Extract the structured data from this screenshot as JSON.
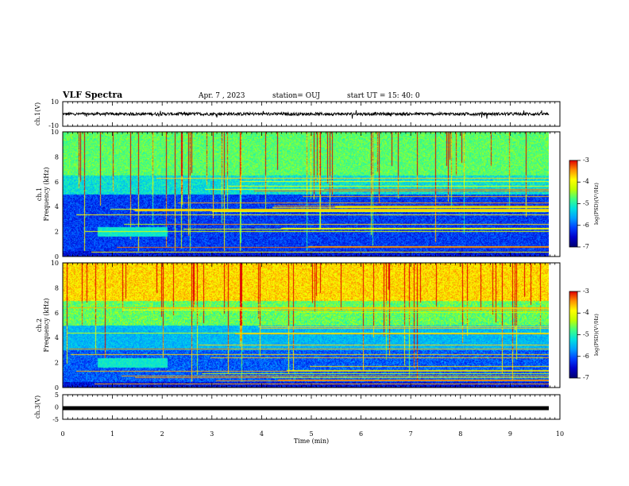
{
  "header": {
    "title": "VLF Spectra",
    "date": "Apr. 7 , 2023",
    "station": "station= OUJ",
    "start_ut": "start UT = 15: 40: 0"
  },
  "colors": {
    "spectrum_scale": [
      "#000070",
      "#0000c8",
      "#0040ff",
      "#00a0ff",
      "#00e0e0",
      "#40ff80",
      "#c0ff00",
      "#ffff00",
      "#ff9000",
      "#e00000",
      "#ffffff"
    ]
  },
  "chart_data": [
    {
      "type": "line",
      "name": "ch1-waveform",
      "ylabel": "ch.1(V)",
      "ylim": [
        -10,
        10
      ],
      "yticks": [
        "10",
        "-10"
      ],
      "baseline": 0,
      "amplitude": 1.5
    },
    {
      "type": "heatmap",
      "name": "ch1-spectrogram",
      "ylabel_line1": "ch.1",
      "ylabel_line2": "Frequency (kHz)",
      "ylim": [
        0,
        10
      ],
      "yticks": [
        "0",
        "2",
        "4",
        "6",
        "8",
        "10"
      ],
      "colorbar": {
        "label": "log(PSD)(V²/Hz)",
        "range": [
          -7,
          -3
        ],
        "ticks": [
          "-3",
          "-4",
          "-5",
          "-6",
          "-7"
        ]
      }
    },
    {
      "type": "heatmap",
      "name": "ch2-spectrogram",
      "ylabel_line1": "ch.2",
      "ylabel_line2": "Frequency (kHz)",
      "ylim": [
        0,
        10
      ],
      "yticks": [
        "0",
        "2",
        "4",
        "6",
        "8",
        "10"
      ],
      "colorbar": {
        "label": "log(PSD)(V²/Hz)",
        "range": [
          -7,
          -3
        ],
        "ticks": [
          "-3",
          "-4",
          "-5",
          "-6",
          "-7"
        ]
      }
    },
    {
      "type": "line",
      "name": "ch3-waveform",
      "ylabel": "ch.3(V)",
      "ylim": [
        -5,
        5
      ],
      "yticks": [
        "5",
        "0",
        "-5"
      ],
      "baseline": -0.5
    }
  ],
  "x_axis": {
    "xlabel": "Time (min)",
    "xlim": [
      0,
      10
    ],
    "ticks": [
      "0",
      "1",
      "2",
      "3",
      "4",
      "5",
      "6",
      "7",
      "8",
      "9",
      "10"
    ]
  }
}
